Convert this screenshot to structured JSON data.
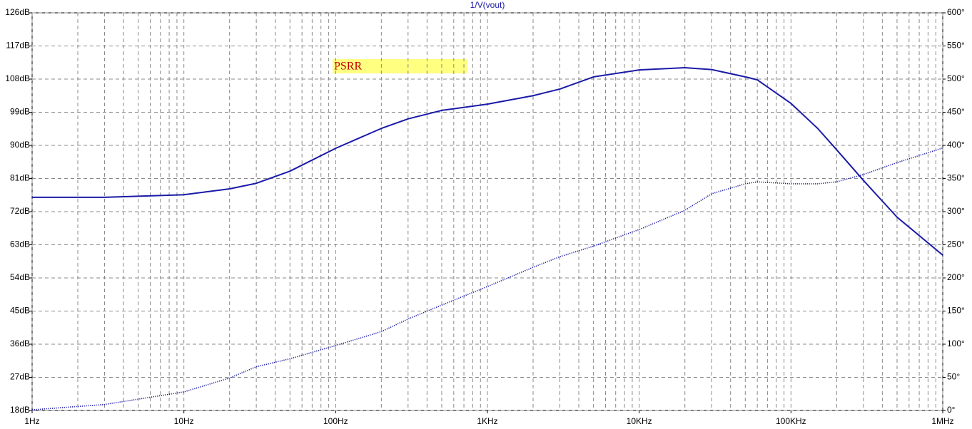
{
  "chart_data": {
    "type": "line",
    "title": "1/V(vout)",
    "annotation": "PSRR",
    "x": [
      1,
      3,
      10,
      20,
      30,
      50,
      100,
      200,
      300,
      500,
      1000,
      2000,
      3000,
      5000,
      10000,
      20000,
      30000,
      50000,
      60000,
      100000,
      150000,
      200000,
      300000,
      500000,
      1000000
    ],
    "xscale": "log",
    "xlim": [
      1,
      1000000
    ],
    "xticks": [
      {
        "value": 1,
        "label": "1Hz"
      },
      {
        "value": 10,
        "label": "10Hz"
      },
      {
        "value": 100,
        "label": "100Hz"
      },
      {
        "value": 1000,
        "label": "1KHz"
      },
      {
        "value": 10000,
        "label": "10KHz"
      },
      {
        "value": 100000,
        "label": "100KHz"
      },
      {
        "value": 1000000,
        "label": "1MHz"
      }
    ],
    "ylim": [
      18,
      126
    ],
    "yticks": [
      {
        "value": 18,
        "label": "18dB"
      },
      {
        "value": 27,
        "label": "27dB"
      },
      {
        "value": 36,
        "label": "36dB"
      },
      {
        "value": 45,
        "label": "45dB"
      },
      {
        "value": 54,
        "label": "54dB"
      },
      {
        "value": 63,
        "label": "63dB"
      },
      {
        "value": 72,
        "label": "72dB"
      },
      {
        "value": 81,
        "label": "81dB"
      },
      {
        "value": 90,
        "label": "90dB"
      },
      {
        "value": 99,
        "label": "99dB"
      },
      {
        "value": 108,
        "label": "108dB"
      },
      {
        "value": 117,
        "label": "117dB"
      },
      {
        "value": 126,
        "label": "126dB"
      }
    ],
    "y2lim": [
      0,
      600
    ],
    "y2ticks": [
      {
        "value": 0,
        "label": "0°"
      },
      {
        "value": 50,
        "label": "50°"
      },
      {
        "value": 100,
        "label": "100°"
      },
      {
        "value": 150,
        "label": "150°"
      },
      {
        "value": 200,
        "label": "200°"
      },
      {
        "value": 250,
        "label": "250°"
      },
      {
        "value": 300,
        "label": "300°"
      },
      {
        "value": 350,
        "label": "350°"
      },
      {
        "value": 400,
        "label": "400°"
      },
      {
        "value": 450,
        "label": "450°"
      },
      {
        "value": 500,
        "label": "500°"
      },
      {
        "value": 550,
        "label": "550°"
      },
      {
        "value": 600,
        "label": "600°"
      }
    ],
    "grid": true,
    "series": [
      {
        "color": "#1a1aa8",
        "style": "solid",
        "axis": "y",
        "values": [
          75.9,
          75.9,
          76.6,
          78.2,
          79.7,
          83.0,
          89.2,
          94.6,
          97.2,
          99.5,
          101.2,
          103.5,
          105.3,
          108.6,
          110.5,
          111.1,
          110.6,
          108.6,
          107.8,
          101.4,
          94.6,
          88.8,
          80.5,
          70.5,
          60.2
        ]
      },
      {
        "color": "#1a1aa8",
        "style": "dotted",
        "axis": "y2",
        "values": [
          1,
          9,
          28,
          49,
          66,
          78,
          98,
          119,
          138,
          159,
          187,
          216,
          232,
          248,
          273,
          302,
          327,
          342,
          345,
          342,
          342,
          345,
          356,
          374,
          396
        ]
      }
    ]
  }
}
